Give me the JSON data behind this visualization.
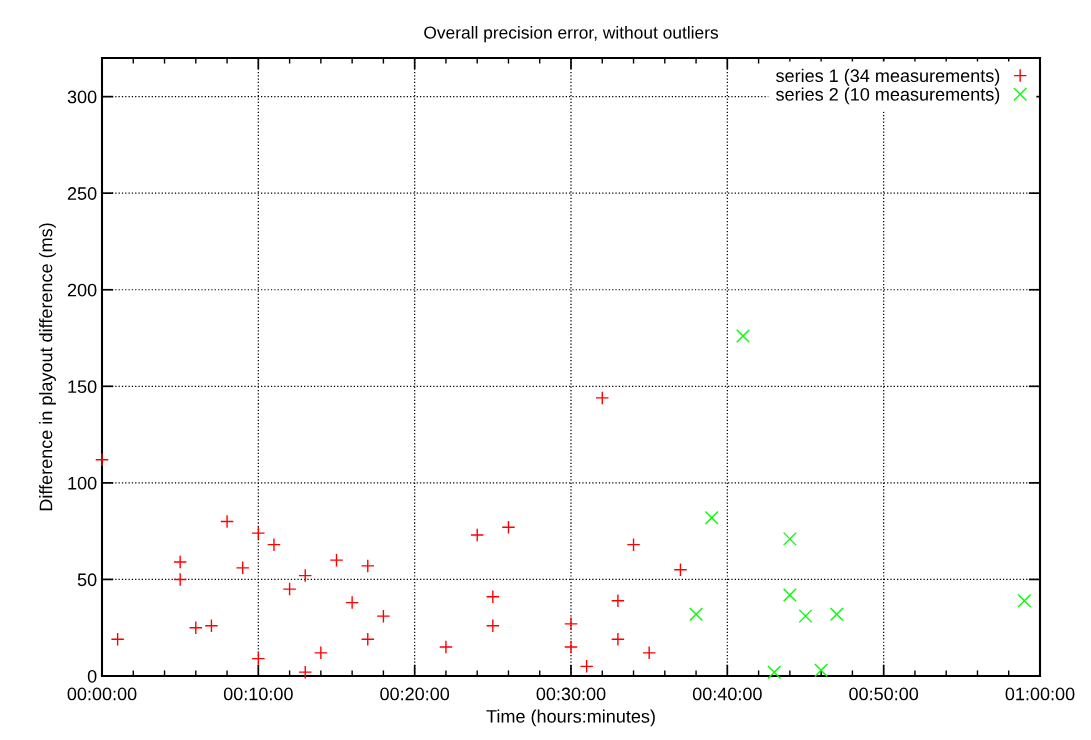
{
  "chart_data": {
    "type": "scatter",
    "title": "Overall precision error, without outliers",
    "xlabel": "Time (hours:minutes)",
    "ylabel": "Difference in playout difference (ms)",
    "xlim": [
      0,
      60
    ],
    "ylim": [
      0,
      320
    ],
    "xticks": [
      {
        "value": 0,
        "label": "00:00:00"
      },
      {
        "value": 2,
        "label": null
      },
      {
        "value": 4,
        "label": null
      },
      {
        "value": 6,
        "label": null
      },
      {
        "value": 8,
        "label": null
      },
      {
        "value": 10,
        "label": "00:10:00"
      },
      {
        "value": 12,
        "label": null
      },
      {
        "value": 14,
        "label": null
      },
      {
        "value": 16,
        "label": null
      },
      {
        "value": 18,
        "label": null
      },
      {
        "value": 20,
        "label": "00:20:00"
      },
      {
        "value": 22,
        "label": null
      },
      {
        "value": 24,
        "label": null
      },
      {
        "value": 26,
        "label": null
      },
      {
        "value": 28,
        "label": null
      },
      {
        "value": 30,
        "label": "00:30:00"
      },
      {
        "value": 32,
        "label": null
      },
      {
        "value": 34,
        "label": null
      },
      {
        "value": 36,
        "label": null
      },
      {
        "value": 38,
        "label": null
      },
      {
        "value": 40,
        "label": "00:40:00"
      },
      {
        "value": 42,
        "label": null
      },
      {
        "value": 44,
        "label": null
      },
      {
        "value": 46,
        "label": null
      },
      {
        "value": 48,
        "label": null
      },
      {
        "value": 50,
        "label": "00:50:00"
      },
      {
        "value": 52,
        "label": null
      },
      {
        "value": 54,
        "label": null
      },
      {
        "value": 56,
        "label": null
      },
      {
        "value": 58,
        "label": null
      },
      {
        "value": 60,
        "label": "01:00:00"
      }
    ],
    "yticks": [
      0,
      50,
      100,
      150,
      200,
      250,
      300
    ],
    "grid": true,
    "legend": "top right",
    "series": [
      {
        "name": "series 1 (34 measurements)",
        "color": "#ff0000",
        "marker": "plus",
        "x": [
          0,
          1,
          5,
          5,
          6,
          7,
          8,
          9,
          10,
          10,
          11,
          12,
          13,
          13,
          14,
          15,
          16,
          17,
          17,
          18,
          22,
          24,
          25,
          25,
          26,
          30,
          30,
          31,
          32,
          33,
          33,
          34,
          35,
          37
        ],
        "values": [
          112,
          19,
          59,
          50,
          25,
          26,
          80,
          56,
          74,
          9,
          68,
          45,
          52,
          2,
          12,
          60,
          38,
          57,
          19,
          31,
          15,
          73,
          41,
          26,
          77,
          27,
          15,
          5,
          144,
          39,
          19,
          68,
          12,
          55
        ]
      },
      {
        "name": "series 2 (10 measurements)",
        "color": "#00ff00",
        "marker": "cross",
        "x": [
          38,
          39,
          41,
          43,
          44,
          44,
          45,
          46,
          47,
          59
        ],
        "values": [
          32,
          82,
          176,
          2,
          71,
          42,
          31,
          3,
          32,
          39
        ]
      }
    ]
  }
}
